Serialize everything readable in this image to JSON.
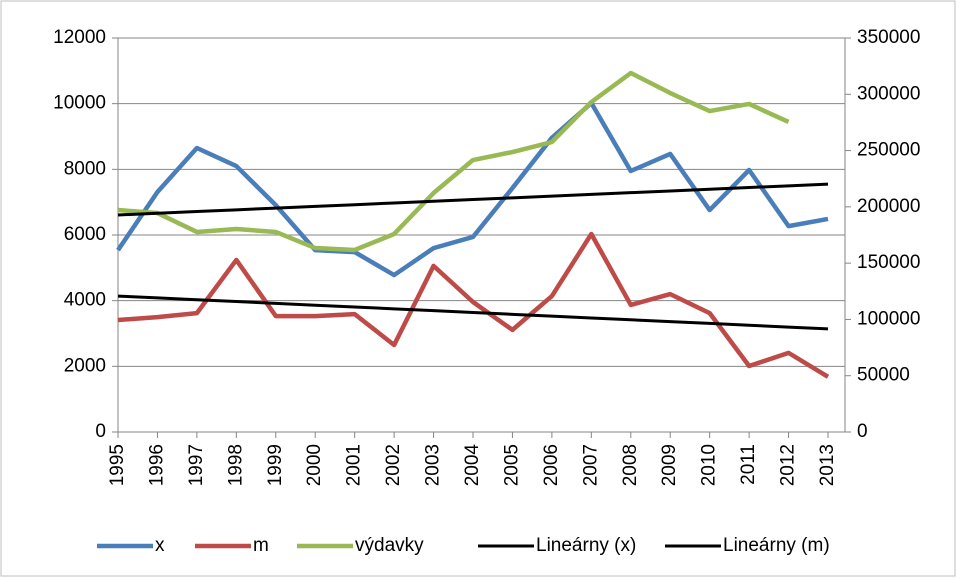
{
  "chart_data": {
    "type": "line",
    "categories": [
      "1995",
      "1996",
      "1997",
      "1998",
      "1999",
      "2000",
      "2001",
      "2002",
      "2003",
      "2004",
      "2005",
      "2006",
      "2007",
      "2008",
      "2009",
      "2010",
      "2011",
      "2012",
      "2013"
    ],
    "series": [
      {
        "name": "x",
        "color": "#4a7ebb",
        "values": [
          5540,
          7310,
          8650,
          8100,
          6910,
          5540,
          5480,
          4780,
          5600,
          5940,
          7430,
          8960,
          10020,
          7950,
          8470,
          6760,
          7980,
          6270,
          6490
        ]
      },
      {
        "name": "m",
        "color": "#be4b48",
        "values": [
          3410,
          3500,
          3620,
          5240,
          3530,
          3530,
          3590,
          2650,
          5060,
          3960,
          3110,
          4140,
          6030,
          3870,
          4200,
          3620,
          2010,
          2410,
          1680
        ]
      },
      {
        "name": "výdavky",
        "color": "#98b954",
        "axis": "y2",
        "values": [
          197200,
          194500,
          177700,
          180300,
          177700,
          163400,
          161700,
          175900,
          212300,
          241600,
          248700,
          257600,
          293100,
          318900,
          301100,
          285100,
          291400,
          275400,
          null
        ]
      },
      {
        "name": "Lineárny (x)",
        "color": "#000000",
        "values": [
          6610,
          6662,
          6714,
          6767,
          6819,
          6871,
          6923,
          6976,
          7028,
          7080,
          7132,
          7184,
          7237,
          7289,
          7341,
          7393,
          7446,
          7498,
          7550
        ]
      },
      {
        "name": "Lineárny (m)",
        "color": "#000000",
        "values": [
          4140,
          4084,
          4029,
          3973,
          3918,
          3862,
          3807,
          3751,
          3696,
          3640,
          3584,
          3529,
          3473,
          3418,
          3362,
          3307,
          3251,
          3196,
          3140
        ]
      }
    ],
    "ylim": [
      0,
      12000
    ],
    "yticks": [
      0,
      2000,
      4000,
      6000,
      8000,
      10000,
      12000
    ],
    "y2lim": [
      0,
      350000
    ],
    "y2ticks": [
      0,
      50000,
      100000,
      150000,
      200000,
      250000,
      300000,
      350000
    ],
    "grid": true,
    "legend": "bottom"
  }
}
